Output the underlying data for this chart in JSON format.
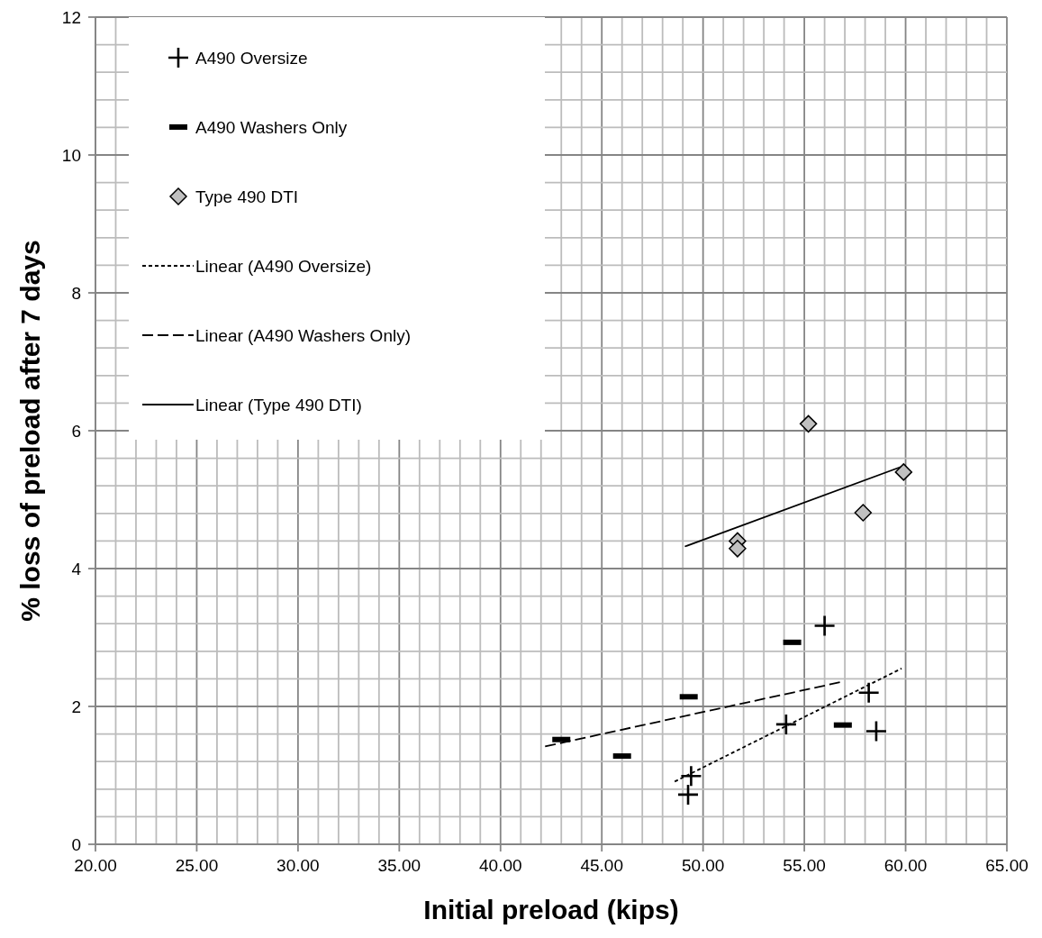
{
  "chart_data": {
    "type": "scatter",
    "xlabel": "Initial preload (kips)",
    "ylabel": "% loss of preload after 7 days",
    "xlim": [
      20,
      65
    ],
    "ylim": [
      0,
      12
    ],
    "xticks": [
      {
        "value": 20,
        "label": "20.00"
      },
      {
        "value": 21,
        "label": null
      },
      {
        "value": 22,
        "label": null
      },
      {
        "value": 23,
        "label": null
      },
      {
        "value": 24,
        "label": null
      },
      {
        "value": 25,
        "label": "25.00"
      },
      {
        "value": 26,
        "label": null
      },
      {
        "value": 27,
        "label": null
      },
      {
        "value": 28,
        "label": null
      },
      {
        "value": 29,
        "label": null
      },
      {
        "value": 30,
        "label": "30.00"
      },
      {
        "value": 31,
        "label": null
      },
      {
        "value": 32,
        "label": null
      },
      {
        "value": 33,
        "label": null
      },
      {
        "value": 34,
        "label": null
      },
      {
        "value": 35,
        "label": "35.00"
      },
      {
        "value": 36,
        "label": null
      },
      {
        "value": 37,
        "label": null
      },
      {
        "value": 38,
        "label": null
      },
      {
        "value": 39,
        "label": null
      },
      {
        "value": 40,
        "label": "40.00"
      },
      {
        "value": 41,
        "label": null
      },
      {
        "value": 42,
        "label": null
      },
      {
        "value": 43,
        "label": null
      },
      {
        "value": 44,
        "label": null
      },
      {
        "value": 45,
        "label": "45.00"
      },
      {
        "value": 46,
        "label": null
      },
      {
        "value": 47,
        "label": null
      },
      {
        "value": 48,
        "label": null
      },
      {
        "value": 49,
        "label": null
      },
      {
        "value": 50,
        "label": "50.00"
      },
      {
        "value": 51,
        "label": null
      },
      {
        "value": 52,
        "label": null
      },
      {
        "value": 53,
        "label": null
      },
      {
        "value": 54,
        "label": null
      },
      {
        "value": 55,
        "label": "55.00"
      },
      {
        "value": 56,
        "label": null
      },
      {
        "value": 57,
        "label": null
      },
      {
        "value": 58,
        "label": null
      },
      {
        "value": 59,
        "label": null
      },
      {
        "value": 60,
        "label": "60.00"
      },
      {
        "value": 61,
        "label": null
      },
      {
        "value": 62,
        "label": null
      },
      {
        "value": 63,
        "label": null
      },
      {
        "value": 64,
        "label": null
      },
      {
        "value": 65,
        "label": "65.00"
      }
    ],
    "yticks": [
      0,
      {
        "value": 0.4,
        "label": null
      },
      {
        "value": 0.8,
        "label": null
      },
      {
        "value": 1.2,
        "label": null
      },
      {
        "value": 1.6,
        "label": null
      },
      2,
      {
        "value": 2.4,
        "label": null
      },
      {
        "value": 2.8,
        "label": null
      },
      {
        "value": 3.2,
        "label": null
      },
      {
        "value": 3.6,
        "label": null
      },
      4,
      {
        "value": 4.4,
        "label": null
      },
      {
        "value": 4.8,
        "label": null
      },
      {
        "value": 5.2,
        "label": null
      },
      {
        "value": 5.6,
        "label": null
      },
      6,
      {
        "value": 6.4,
        "label": null
      },
      {
        "value": 6.8,
        "label": null
      },
      {
        "value": 7.2,
        "label": null
      },
      {
        "value": 7.6,
        "label": null
      },
      8,
      {
        "value": 8.4,
        "label": null
      },
      {
        "value": 8.8,
        "label": null
      },
      {
        "value": 9.2,
        "label": null
      },
      {
        "value": 9.6,
        "label": null
      },
      10,
      {
        "value": 10.4,
        "label": null
      },
      {
        "value": 10.8,
        "label": null
      },
      {
        "value": 11.2,
        "label": null
      },
      {
        "value": 11.6,
        "label": null
      },
      12
    ],
    "grid": true,
    "legend": "top left",
    "series": [
      {
        "name": "A490 Oversize",
        "marker": "cross",
        "color": "#000000",
        "x": [
          49.26,
          49.41,
          54.1,
          56.0,
          58.18,
          58.55
        ],
        "values": [
          0.72,
          0.99,
          1.74,
          3.17,
          2.2,
          1.64
        ]
      },
      {
        "name": "A490 Washers Only",
        "color": "#000000",
        "x": [
          43.0,
          46.0,
          49.29,
          54.4,
          56.9
        ],
        "values": [
          1.52,
          1.28,
          2.14,
          2.93,
          1.73
        ]
      },
      {
        "name": "Type 490 DTI",
        "marker": "diamond",
        "color": "#c0c0c0",
        "x": [
          51.7,
          51.7,
          55.2,
          57.9,
          59.9
        ],
        "values": [
          4.4,
          4.29,
          6.1,
          4.81,
          5.4
        ]
      },
      {
        "name": "Linear (A490 Oversize)",
        "type": "line",
        "line_style": "dotted",
        "color": "#000000",
        "x": [
          48.6,
          59.8
        ],
        "values": [
          0.91,
          2.55
        ]
      },
      {
        "name": "Linear (A490 Washers Only)",
        "type": "line",
        "line_style": "dashed",
        "color": "#000000",
        "x": [
          42.2,
          56.9
        ],
        "values": [
          1.42,
          2.36
        ]
      },
      {
        "name": "Linear (Type 490 DTI)",
        "type": "line",
        "line_style": "solid",
        "color": "#000000",
        "x": [
          49.1,
          60.0
        ],
        "values": [
          4.32,
          5.5
        ]
      }
    ]
  }
}
